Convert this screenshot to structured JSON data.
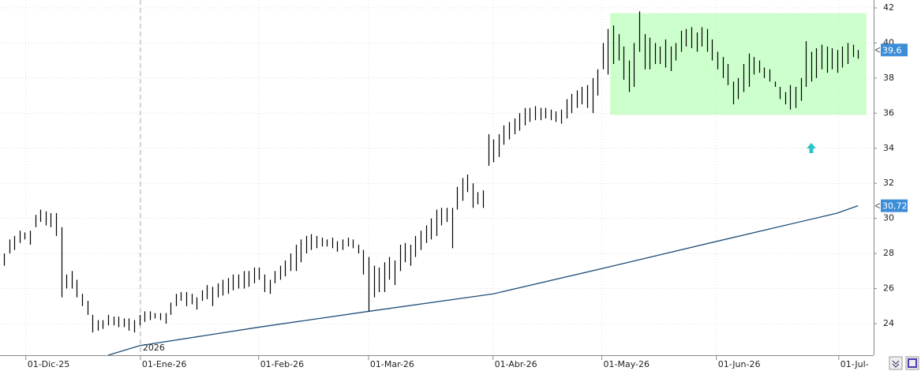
{
  "chart_data": {
    "type": "range-bar",
    "high": [
      28.0,
      28.8,
      29.0,
      29.3,
      29.2,
      29.3,
      30.2,
      30.5,
      30.4,
      30.3,
      30.3,
      29.5,
      26.8,
      27.0,
      26.5,
      25.7,
      25.3,
      24.5,
      24.2,
      24.2,
      24.5,
      24.4,
      24.4,
      24.3,
      24.3,
      24.2,
      24.5,
      24.7,
      24.7,
      24.6,
      24.6,
      24.6,
      25.2,
      25.7,
      25.8,
      25.8,
      25.7,
      25.5,
      25.9,
      26.2,
      26.1,
      26.3,
      26.5,
      26.6,
      26.8,
      26.8,
      27.0,
      27.0,
      27.2,
      27.2,
      26.8,
      26.5,
      27.0,
      27.3,
      27.6,
      28.0,
      28.5,
      28.8,
      29.0,
      29.1,
      29.0,
      28.9,
      28.8,
      28.9,
      28.7,
      28.8,
      28.9,
      28.8,
      28.5,
      28.2,
      27.8,
      27.3,
      27.2,
      27.5,
      27.8,
      27.6,
      28.5,
      28.6,
      28.5,
      29.0,
      29.3,
      29.6,
      30.0,
      30.5,
      30.6,
      30.6,
      30.6,
      31.8,
      32.3,
      32.5,
      32.0,
      31.5,
      31.6,
      34.8,
      34.5,
      34.8,
      35.3,
      35.5,
      35.7,
      36.0,
      36.3,
      36.3,
      36.4,
      36.3,
      36.3,
      36.2,
      36.1,
      36.2,
      36.8,
      37.1,
      37.3,
      37.5,
      37.6,
      38.0,
      38.5,
      40.0,
      40.8,
      41.0,
      40.5,
      39.8,
      39.0,
      40.0,
      41.8,
      40.5,
      40.3,
      40.0,
      39.8,
      40.2,
      39.8,
      40.0,
      40.7,
      40.8,
      40.9,
      40.6,
      40.9,
      40.8,
      40.2,
      39.5,
      39.2,
      38.8,
      37.8,
      38.0,
      38.8,
      39.4,
      39.2,
      39.0,
      38.6,
      38.5,
      37.8,
      37.5,
      37.2,
      37.6,
      37.5,
      38.0,
      40.1,
      39.5,
      39.7,
      39.9,
      39.8,
      39.7,
      39.6,
      39.8,
      40.0,
      39.9,
      39.6
    ],
    "low": [
      27.3,
      28.0,
      28.2,
      28.6,
      28.8,
      28.5,
      29.5,
      29.8,
      29.6,
      29.5,
      29.0,
      25.5,
      26.0,
      26.0,
      25.5,
      25.0,
      24.5,
      23.5,
      23.6,
      23.7,
      23.9,
      23.9,
      23.8,
      23.8,
      23.6,
      23.5,
      23.9,
      24.1,
      24.2,
      24.3,
      24.2,
      24.0,
      24.5,
      25.0,
      25.3,
      25.0,
      25.1,
      24.8,
      25.3,
      25.4,
      25.0,
      25.5,
      25.6,
      25.7,
      25.9,
      26.0,
      26.0,
      26.1,
      26.3,
      26.5,
      25.8,
      25.7,
      26.3,
      26.5,
      26.7,
      27.0,
      27.0,
      27.5,
      28.0,
      28.2,
      28.3,
      28.4,
      28.4,
      28.3,
      28.1,
      28.2,
      28.4,
      28.3,
      28.0,
      26.8,
      24.7,
      25.5,
      25.8,
      25.8,
      26.5,
      26.2,
      27.0,
      27.5,
      27.3,
      27.8,
      28.2,
      28.6,
      28.8,
      29.0,
      29.6,
      29.8,
      28.3,
      30.5,
      31.0,
      31.5,
      30.6,
      30.8,
      30.6,
      33.0,
      33.2,
      33.5,
      34.2,
      34.5,
      34.8,
      35.0,
      35.3,
      35.5,
      35.6,
      35.6,
      35.7,
      35.6,
      35.5,
      35.4,
      35.7,
      36.0,
      36.3,
      36.5,
      36.3,
      36.0,
      37.0,
      38.5,
      38.2,
      38.8,
      39.0,
      37.9,
      37.2,
      37.5,
      39.5,
      38.5,
      38.5,
      38.8,
      38.8,
      38.6,
      38.4,
      39.0,
      39.5,
      39.8,
      39.7,
      39.5,
      39.8,
      39.5,
      39.0,
      38.5,
      38.0,
      37.6,
      36.5,
      36.8,
      37.2,
      37.5,
      38.2,
      38.3,
      38.0,
      37.8,
      37.5,
      36.8,
      36.5,
      36.2,
      36.3,
      36.7,
      37.5,
      37.8,
      38.0,
      38.5,
      38.3,
      38.5,
      38.3,
      38.6,
      38.8,
      39.2,
      39.1
    ],
    "bar_color": "#000000",
    "average": {
      "x": [
        20,
        26,
        49,
        70,
        94,
        115,
        137,
        160,
        164
      ],
      "values": [
        22.2,
        22.74,
        23.8,
        24.7,
        25.7,
        27.15,
        28.7,
        30.3,
        30.72
      ],
      "color": "#1f4e79"
    },
    "highlight": {
      "xlim": [
        116.4,
        165.6
      ],
      "ylim": [
        35.9,
        41.7
      ],
      "color": "#ccffcc"
    },
    "last_labels": [
      {
        "value": 39.6,
        "label": "39,6",
        "color": "#3c8dd8"
      },
      {
        "value": 30.72,
        "label": "30,72",
        "color": "#3c8dd8"
      }
    ],
    "year_marker": {
      "value": 26.2,
      "label": "2026"
    },
    "xlim": [
      -0.76,
      167.0
    ],
    "xticks": [
      {
        "value": 4.2,
        "label": "01-Dic-25"
      },
      {
        "value": 26.2,
        "label": "01-Ene-26"
      },
      {
        "value": 48.9,
        "label": "01-Feb-26"
      },
      {
        "value": 70.0,
        "label": "01-Mar-26"
      },
      {
        "value": 93.9,
        "label": "01-Abr-26"
      },
      {
        "value": 114.8,
        "label": "01-May-26"
      },
      {
        "value": 136.8,
        "label": "01-Jun-26"
      },
      {
        "value": 160.3,
        "label": "01-Jul-"
      }
    ],
    "ylim": [
      22.2,
      42.45
    ],
    "yticks": [
      24,
      26,
      28,
      30,
      32,
      34,
      36,
      38,
      40,
      42
    ],
    "grid": true
  }
}
